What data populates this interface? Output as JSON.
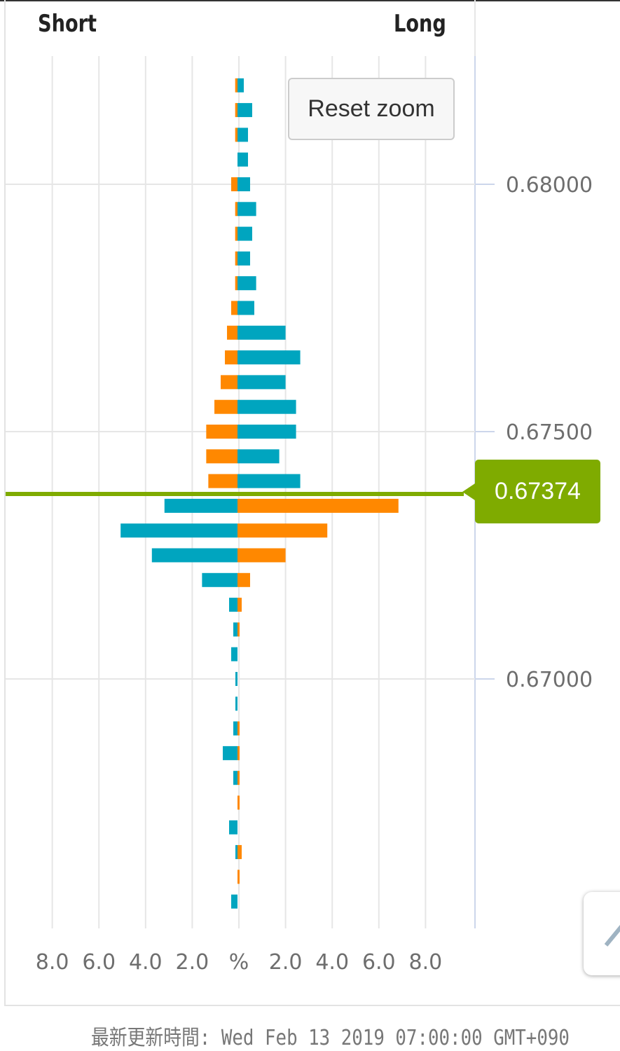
{
  "header": {
    "short_label": "Short",
    "long_label": "Long"
  },
  "reset_zoom_label": "Reset zoom",
  "current_price": "0.67374",
  "footer": {
    "updated_text": "最新更新時間: Wed Feb 13 2019 07:00:00 GMT+090"
  },
  "colors": {
    "orange": "#ff8800",
    "teal": "#00a5bf",
    "current_price": "#7fab00",
    "grid": "#e6e6e6"
  },
  "tool_icon": "pencil-icon",
  "chart_data": {
    "type": "bar",
    "orientation": "horizontal-butterfly",
    "x_unit_label": "%",
    "x_tick_labels": [
      "8.0",
      "6.0",
      "4.0",
      "2.0",
      "%",
      "2.0",
      "4.0",
      "6.0",
      "8.0"
    ],
    "xlim": [
      -10,
      10
    ],
    "y_tick_labels": [
      "0.68000",
      "0.67500",
      "0.67000"
    ],
    "y_ticks": [
      0.68,
      0.675,
      0.67
    ],
    "ylim": [
      0.6652,
      0.6829
    ],
    "current_price": 0.67374,
    "grid": true,
    "prices": [
      0.682,
      0.6815,
      0.681,
      0.6805,
      0.68,
      0.6795,
      0.679,
      0.6785,
      0.678,
      0.6775,
      0.677,
      0.6765,
      0.676,
      0.6755,
      0.675,
      0.6745,
      0.674,
      0.6735,
      0.673,
      0.6725,
      0.672,
      0.6715,
      0.671,
      0.6705,
      0.67,
      0.6695,
      0.669,
      0.6685,
      0.668,
      0.6675,
      0.667,
      0.6665,
      0.666,
      0.6655
    ],
    "series": [
      {
        "name": "Short",
        "side": "left",
        "values": [
          0.1,
          0.1,
          0.1,
          0,
          0.27,
          0.1,
          0.1,
          0.1,
          0.1,
          0.27,
          0.45,
          0.54,
          0.72,
          0.99,
          1.34,
          1.34,
          1.25,
          3.13,
          5.01,
          3.67,
          1.52,
          0.36,
          0.18,
          0.27,
          0.09,
          0.09,
          0.18,
          0.63,
          0.18,
          0,
          0.36,
          0.09,
          0,
          0.27
        ]
      },
      {
        "name": "Long",
        "side": "right",
        "values": [
          0.27,
          0.63,
          0.45,
          0.45,
          0.54,
          0.8,
          0.63,
          0.54,
          0.8,
          0.72,
          2.06,
          2.69,
          2.06,
          2.51,
          2.51,
          1.79,
          2.69,
          6.9,
          3.85,
          2.06,
          0.54,
          0.18,
          0.09,
          0,
          0,
          0,
          0.09,
          0.09,
          0.09,
          0.09,
          0,
          0.18,
          0.09,
          0
        ]
      }
    ]
  }
}
